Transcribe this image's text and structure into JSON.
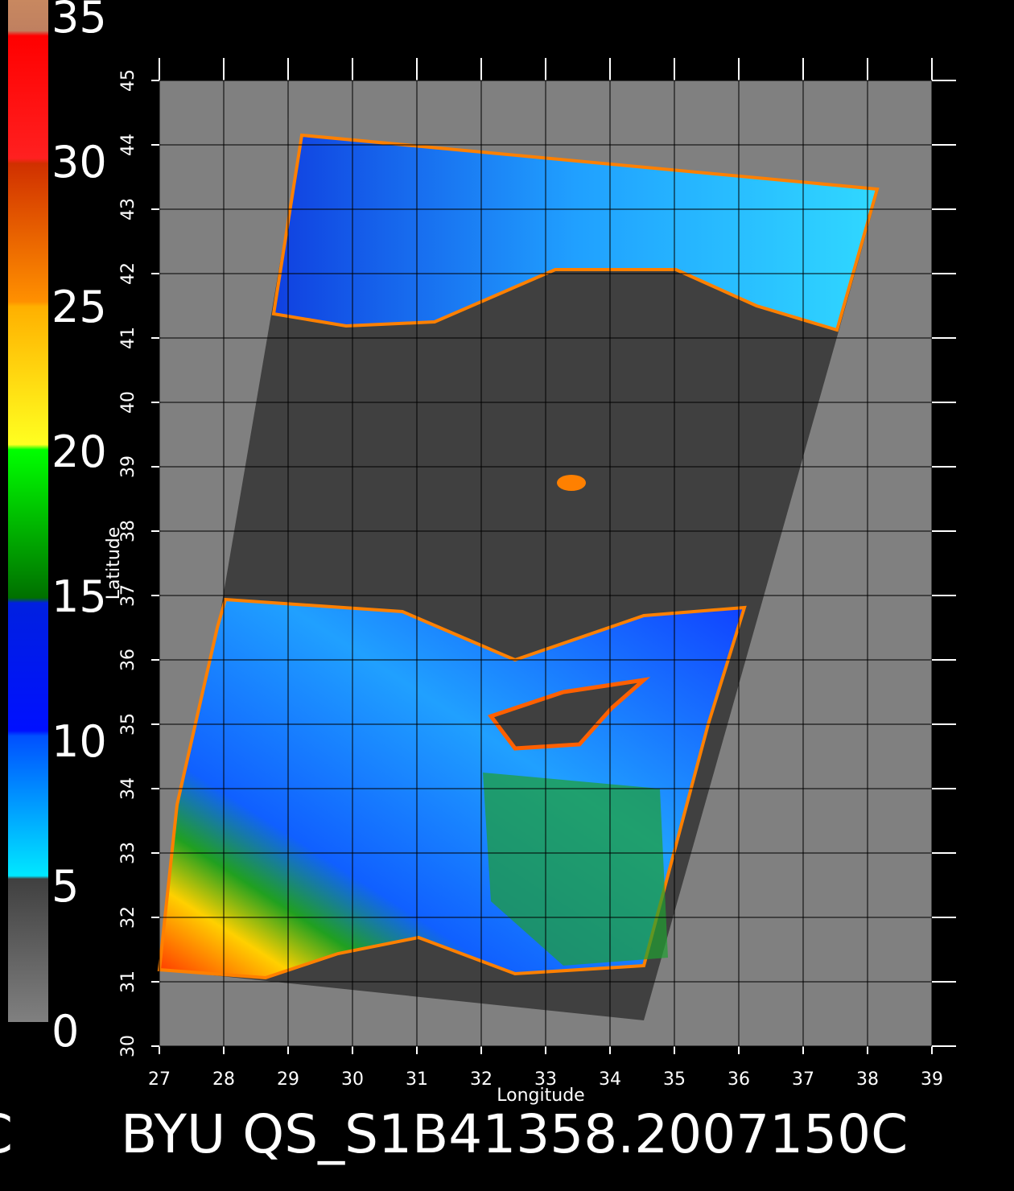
{
  "colorbar": {
    "ticks": [
      0,
      5,
      10,
      15,
      20,
      25,
      30,
      35
    ],
    "lim": [
      0,
      35
    ]
  },
  "map": {
    "xlabel": "Longitude",
    "ylabel": "Latitude",
    "xlim": [
      27,
      39
    ],
    "ylim": [
      30,
      45
    ],
    "xticks": [
      27,
      28,
      29,
      30,
      31,
      32,
      33,
      34,
      35,
      36,
      37,
      38,
      39
    ],
    "yticks": [
      30,
      31,
      32,
      33,
      34,
      35,
      36,
      37,
      38,
      39,
      40,
      41,
      42,
      43,
      44,
      45
    ],
    "grid": true
  },
  "footer": {
    "left": "C",
    "title": "BYU QS_S1B41358.2007150C"
  }
}
